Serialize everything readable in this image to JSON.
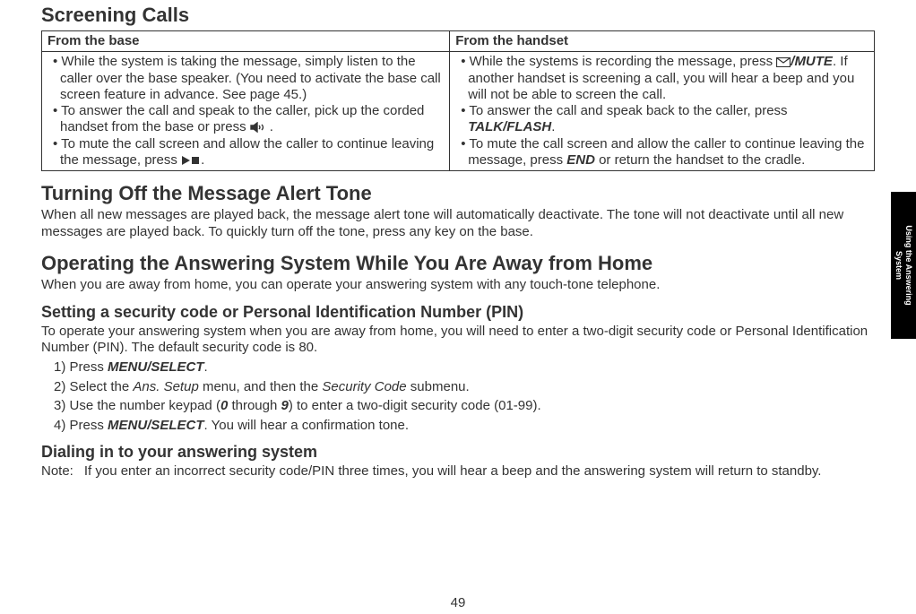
{
  "headings": {
    "screening": "Screening Calls",
    "turning_off": "Turning Off the Message Alert Tone",
    "operating": "Operating the Answering System While You Are Away from Home",
    "setting_pin": "Setting a security code or Personal Identification Number (PIN)",
    "dialing_in": "Dialing in to your answering system"
  },
  "table": {
    "col1_header": "From the base",
    "col2_header": "From the handset",
    "base_b1_pre": "While the system is taking the message, simply listen to the caller over the base speaker. (You need to activate the base call screen feature in advance. See page 45.)",
    "base_b2_pre": "To answer the call and speak to the caller, pick up the corded handset from the base or press ",
    "base_b2_post": ".",
    "base_b3_pre": "To mute the call screen and allow the caller to continue leaving the message, press ",
    "base_b3_post": ".",
    "hs_b1_pre": "While the systems is recording the message, press ",
    "hs_b1_mid": "/",
    "hs_b1_key": "MUTE",
    "hs_b1_post": ". If another handset is screening a call, you will hear a beep and you will not be able to screen the call.",
    "hs_b2_pre": "To answer the call and speak back to the caller, press ",
    "hs_b2_key": "TALK/FLASH",
    "hs_b2_post": ".",
    "hs_b3_pre": "To mute the call screen and allow the caller to continue leaving the message, press ",
    "hs_b3_key": "END",
    "hs_b3_post": " or return the handset to the cradle."
  },
  "paragraphs": {
    "turning_off": "When all new messages are played back, the message alert tone will automatically deactivate. The tone will not deactivate until all new messages are played back. To quickly turn off the tone, press any key on the base.",
    "operating": "When you are away from home, you can operate your answering system with any touch-tone telephone.",
    "setting_pin": "To operate your answering system when you are away from home, you will need to enter a two-digit security code or Personal Identification Number (PIN). The default security code is 80."
  },
  "steps": {
    "s1_pre": "Press ",
    "s1_key": "MENU/SELECT",
    "s1_post": ".",
    "s2_pre": "Select the ",
    "s2_i1": "Ans. Setup",
    "s2_mid": " menu, and then the ",
    "s2_i2": "Security Code",
    "s2_post": " submenu.",
    "s3_pre": "Use the number keypad (",
    "s3_k1": "0",
    "s3_mid": " through ",
    "s3_k2": "9",
    "s3_post1": ") to enter a two-digit security code (01-99).",
    "s4_pre": "Press ",
    "s4_key": "MENU/SELECT",
    "s4_post": ". You will hear a confirmation tone."
  },
  "note": {
    "label": "Note:",
    "text": "If you enter an incorrect security code/PIN three times, you will hear a beep and the answering system will return to standby."
  },
  "sidetab": "Using the Answering\nSystem",
  "page_number": "49"
}
